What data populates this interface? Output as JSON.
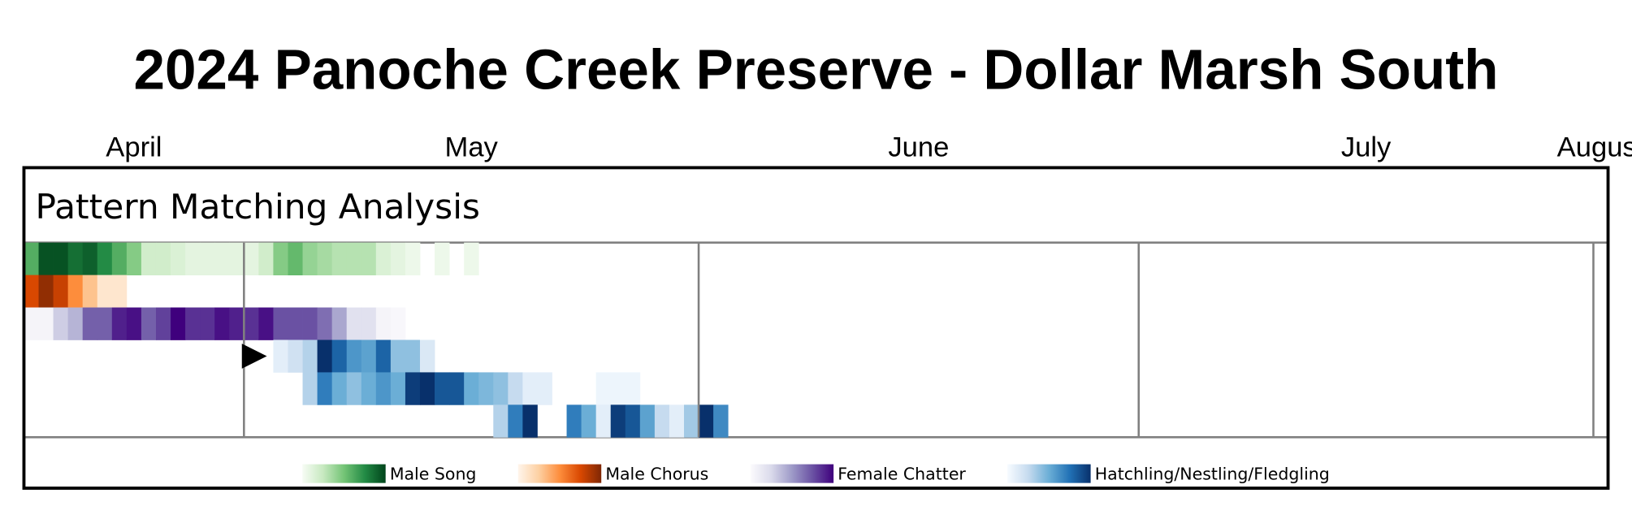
{
  "chart_data": {
    "type": "heatmap",
    "title": "2024 Panoche Creek Preserve - Dollar Marsh South",
    "subtitle": "Pattern Matching Analysis",
    "xlim": [
      0,
      108
    ],
    "xticks": [
      {
        "value": 0,
        "label": "April"
      },
      {
        "value": 15,
        "label": "May"
      },
      {
        "value": 46,
        "label": "June"
      },
      {
        "value": 76,
        "label": "July"
      },
      {
        "value": 107,
        "label": "August"
      }
    ],
    "series": [
      {
        "name": "Male Song",
        "colormap": [
          "#f7fcf5",
          "#c7e9c0",
          "#74c476",
          "#238b45",
          "#00441b"
        ],
        "rows": [
          {
            "x": [
              0,
              1,
              2,
              3,
              4,
              5,
              6,
              7,
              8,
              9,
              10,
              11,
              12,
              13,
              14,
              15,
              16,
              17,
              18,
              19,
              20,
              21,
              22,
              23,
              24,
              25,
              26,
              28,
              30
            ],
            "values": [
              0.6,
              0.95,
              0.95,
              0.85,
              0.9,
              0.75,
              0.6,
              0.45,
              0.2,
              0.2,
              0.15,
              0.1,
              0.1,
              0.1,
              0.1,
              0.1,
              0.2,
              0.45,
              0.55,
              0.4,
              0.35,
              0.3,
              0.3,
              0.3,
              0.15,
              0.1,
              0.05,
              0.05,
              0.05
            ]
          }
        ]
      },
      {
        "name": "Male Chorus",
        "colormap": [
          "#fff5eb",
          "#fdd0a2",
          "#fd8d3c",
          "#d94801",
          "#7f2704"
        ],
        "rows": [
          {
            "x": [
              0,
              1,
              2,
              3,
              4,
              5,
              6
            ],
            "values": [
              0.75,
              0.95,
              0.8,
              0.5,
              0.3,
              0.1,
              0.1
            ]
          }
        ]
      },
      {
        "name": "Female Chatter",
        "colormap": [
          "#fcfbfd",
          "#dadaeb",
          "#9e9ac8",
          "#6a51a3",
          "#3f007d"
        ],
        "rows": [
          {
            "x": [
              0,
              1,
              2,
              3,
              4,
              5,
              6,
              7,
              8,
              9,
              10,
              11,
              12,
              13,
              14,
              15,
              16,
              17,
              18,
              19,
              20,
              21,
              22,
              23,
              24,
              25
            ],
            "values": [
              0.05,
              0.05,
              0.3,
              0.4,
              0.7,
              0.7,
              0.9,
              0.95,
              0.7,
              0.8,
              1,
              0.85,
              0.85,
              0.95,
              0.9,
              0.85,
              0.95,
              0.75,
              0.75,
              0.75,
              0.65,
              0.45,
              0.2,
              0.2,
              0.05,
              0.03
            ]
          }
        ]
      },
      {
        "name": "Hatchling/Nestling/Fledgling",
        "colormap": [
          "#f7fbff",
          "#c6dbef",
          "#6baed6",
          "#2171b5",
          "#08306b"
        ],
        "rows": [
          {
            "x": [
              17,
              18,
              19,
              20,
              21,
              22,
              23,
              24,
              25,
              26,
              27
            ],
            "values": [
              0.1,
              0.2,
              0.3,
              1,
              0.8,
              0.6,
              0.55,
              0.8,
              0.4,
              0.4,
              0.15
            ]
          },
          {
            "x": [
              19,
              20,
              21,
              22,
              23,
              24,
              25,
              26,
              27,
              28,
              29,
              30,
              31,
              32,
              33,
              34,
              35,
              39,
              40,
              41
            ],
            "values": [
              0.3,
              0.7,
              0.5,
              0.4,
              0.5,
              0.6,
              0.5,
              0.95,
              1,
              0.85,
              0.85,
              0.5,
              0.45,
              0.4,
              0.25,
              0.1,
              0.1,
              0.05,
              0.05,
              0.05
            ]
          },
          {
            "x": [
              32,
              33,
              34,
              37,
              38,
              39,
              40,
              41,
              42,
              43,
              44,
              45,
              46,
              47
            ],
            "values": [
              0.3,
              0.7,
              1,
              0.7,
              0.5,
              0.1,
              0.95,
              0.85,
              0.55,
              0.25,
              0.1,
              0.35,
              1,
              0.65
            ]
          }
        ]
      }
    ],
    "annotations": [
      {
        "x": 15,
        "row": 3
      }
    ]
  }
}
